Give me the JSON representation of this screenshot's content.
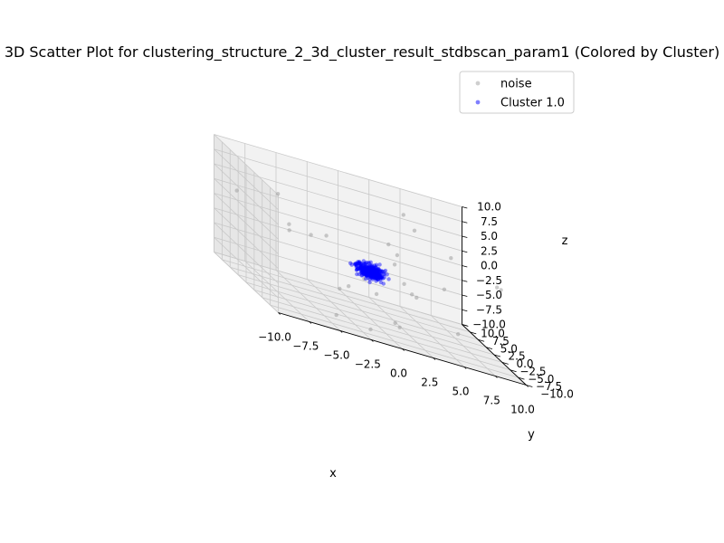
{
  "chart_data": {
    "type": "scatter",
    "projection": "3d",
    "title": "3D Scatter Plot for clustering_structure_2_3d_cluster_result_stdbscan_param1 (Colored by Cluster)",
    "xlabel": "x",
    "ylabel": "y",
    "zlabel": "z",
    "xlim": [
      -10,
      10
    ],
    "ylim": [
      -10,
      10
    ],
    "zlim": [
      -10,
      10
    ],
    "xticks": [
      "−10.0",
      "−7.5",
      "−5.0",
      "−2.5",
      "0.0",
      "2.5",
      "5.0",
      "7.5",
      "10.0"
    ],
    "yticks": [
      "−10.0",
      "−7.5",
      "−5.0",
      "−2.5",
      "0.0",
      "2.5",
      "5.0",
      "7.5",
      "10.0"
    ],
    "zticks": [
      "−10.0",
      "−7.5",
      "−5.0",
      "−2.5",
      "0.0",
      "2.5",
      "5.0",
      "7.5",
      "10.0"
    ],
    "grid": true,
    "legend_position": "top-right",
    "series": [
      {
        "name": "noise",
        "color": "#a0a0a0",
        "points": [
          [
            -6.4,
            4.0,
            5.2
          ],
          [
            -9.2,
            6.0,
            3.0
          ],
          [
            -4.0,
            3.0,
            0.2
          ],
          [
            -6.0,
            2.0,
            0.3
          ],
          [
            -2.5,
            4.0,
            0.5
          ],
          [
            4.5,
            7.0,
            6.8
          ],
          [
            5.0,
            5.5,
            5.2
          ],
          [
            6.0,
            -2.0,
            5.0
          ],
          [
            2.0,
            2.0,
            2.8
          ],
          [
            9.0,
            -6.0,
            3.5
          ],
          [
            9.2,
            -4.0,
            3.0
          ],
          [
            2.5,
            2.0,
            -0.3
          ],
          [
            5.2,
            -3.0,
            -0.3
          ],
          [
            3.0,
            1.0,
            -2.8
          ],
          [
            3.5,
            0.5,
            -4.0
          ],
          [
            4.0,
            1.0,
            -4.5
          ],
          [
            -2.0,
            -1.0,
            -5.2
          ],
          [
            0.0,
            -2.0,
            -4.8
          ],
          [
            -3.5,
            -4.0,
            -5.0
          ],
          [
            5.8,
            -5.0,
            -6.5
          ],
          [
            1.5,
            -2.0,
            -8.8
          ],
          [
            2.0,
            -1.5,
            -9.5
          ],
          [
            -3.5,
            -3.0,
            -10.0
          ],
          [
            -1.0,
            -4.0,
            -10.4
          ],
          [
            -1.0,
            -2.0,
            -2.8
          ],
          [
            -5.5,
            4.0,
            0.6
          ],
          [
            2.7,
            2.0,
            1.4
          ]
        ]
      },
      {
        "name": "Cluster 1.0",
        "color": "#0000ff",
        "center": [
          0.0,
          0.0,
          -2.0
        ],
        "spread": 0.55,
        "count": 350
      }
    ]
  }
}
